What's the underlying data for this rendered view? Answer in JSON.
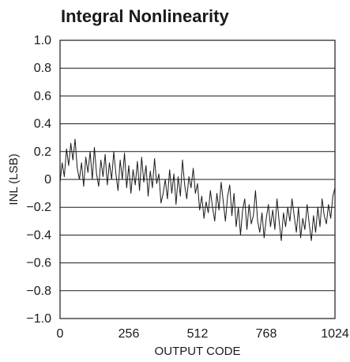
{
  "chart_data": {
    "type": "line",
    "title": "Integral Nonlinearity",
    "xlabel": "OUTPUT CODE",
    "ylabel": "INL (LSB)",
    "xlim": [
      0,
      1024
    ],
    "ylim": [
      -1.0,
      1.0
    ],
    "xticks": [
      0,
      256,
      512,
      768,
      1024
    ],
    "xtick_labels": [
      "0",
      "256",
      "512",
      "768",
      "1024"
    ],
    "yticks": [
      1.0,
      0.8,
      0.6,
      0.4,
      0.2,
      0,
      -0.2,
      -0.4,
      -0.6,
      -0.8,
      -1.0
    ],
    "ytick_labels": [
      "1.0",
      "0.8",
      "0.6",
      "0.4",
      "0.2",
      "0",
      "−0.2",
      "−0.4",
      "−0.6",
      "−0.8",
      "−1.0"
    ],
    "grid": "horizontal",
    "series": [
      {
        "color": "#1a1a1a",
        "x": [
          0,
          8,
          16,
          24,
          32,
          40,
          48,
          56,
          64,
          72,
          80,
          88,
          96,
          104,
          112,
          120,
          128,
          136,
          144,
          152,
          160,
          168,
          176,
          184,
          192,
          200,
          208,
          216,
          224,
          232,
          240,
          248,
          256,
          264,
          272,
          280,
          288,
          296,
          304,
          312,
          320,
          328,
          336,
          344,
          352,
          360,
          368,
          376,
          384,
          392,
          400,
          408,
          416,
          424,
          432,
          440,
          448,
          456,
          464,
          472,
          480,
          488,
          496,
          504,
          512,
          520,
          528,
          536,
          544,
          552,
          560,
          568,
          576,
          584,
          592,
          600,
          608,
          616,
          624,
          632,
          640,
          648,
          656,
          664,
          672,
          680,
          688,
          696,
          704,
          712,
          720,
          728,
          736,
          744,
          752,
          760,
          768,
          776,
          784,
          792,
          800,
          808,
          816,
          824,
          832,
          840,
          848,
          856,
          864,
          872,
          880,
          888,
          896,
          904,
          912,
          920,
          928,
          936,
          944,
          952,
          960,
          968,
          976,
          984,
          992,
          1000,
          1008,
          1016,
          1024
        ],
        "values": [
          -0.02,
          0.12,
          0.02,
          0.22,
          0.1,
          0.26,
          0.14,
          0.29,
          0.08,
          0.0,
          0.12,
          -0.05,
          0.16,
          0.05,
          0.2,
          0.0,
          0.23,
          0.04,
          -0.05,
          0.14,
          0.02,
          0.18,
          -0.04,
          0.12,
          0.0,
          0.2,
          0.04,
          -0.08,
          0.14,
          0.0,
          0.19,
          -0.06,
          0.1,
          -0.1,
          0.07,
          -0.04,
          0.13,
          -0.08,
          0.16,
          -0.02,
          0.1,
          -0.12,
          0.06,
          -0.06,
          0.15,
          -0.03,
          0.04,
          -0.17,
          -0.1,
          0.0,
          -0.14,
          0.07,
          -0.1,
          0.04,
          -0.18,
          0.02,
          -0.12,
          0.14,
          -0.04,
          -0.14,
          0.02,
          -0.06,
          0.08,
          -0.1,
          -0.03,
          -0.22,
          -0.12,
          -0.28,
          -0.16,
          -0.24,
          -0.08,
          -0.2,
          -0.3,
          -0.1,
          -0.22,
          -0.02,
          -0.16,
          -0.3,
          -0.12,
          -0.04,
          -0.26,
          -0.1,
          -0.34,
          -0.2,
          -0.4,
          -0.22,
          -0.14,
          -0.36,
          -0.18,
          -0.32,
          -0.26,
          -0.08,
          -0.3,
          -0.38,
          -0.24,
          -0.42,
          -0.28,
          -0.18,
          -0.34,
          -0.22,
          -0.36,
          -0.14,
          -0.3,
          -0.44,
          -0.24,
          -0.34,
          -0.2,
          -0.3,
          -0.14,
          -0.26,
          -0.38,
          -0.2,
          -0.42,
          -0.28,
          -0.36,
          -0.18,
          -0.32,
          -0.44,
          -0.26,
          -0.38,
          -0.2,
          -0.34,
          -0.14,
          -0.26,
          -0.32,
          -0.18,
          -0.28,
          -0.12,
          -0.06
        ]
      }
    ]
  }
}
